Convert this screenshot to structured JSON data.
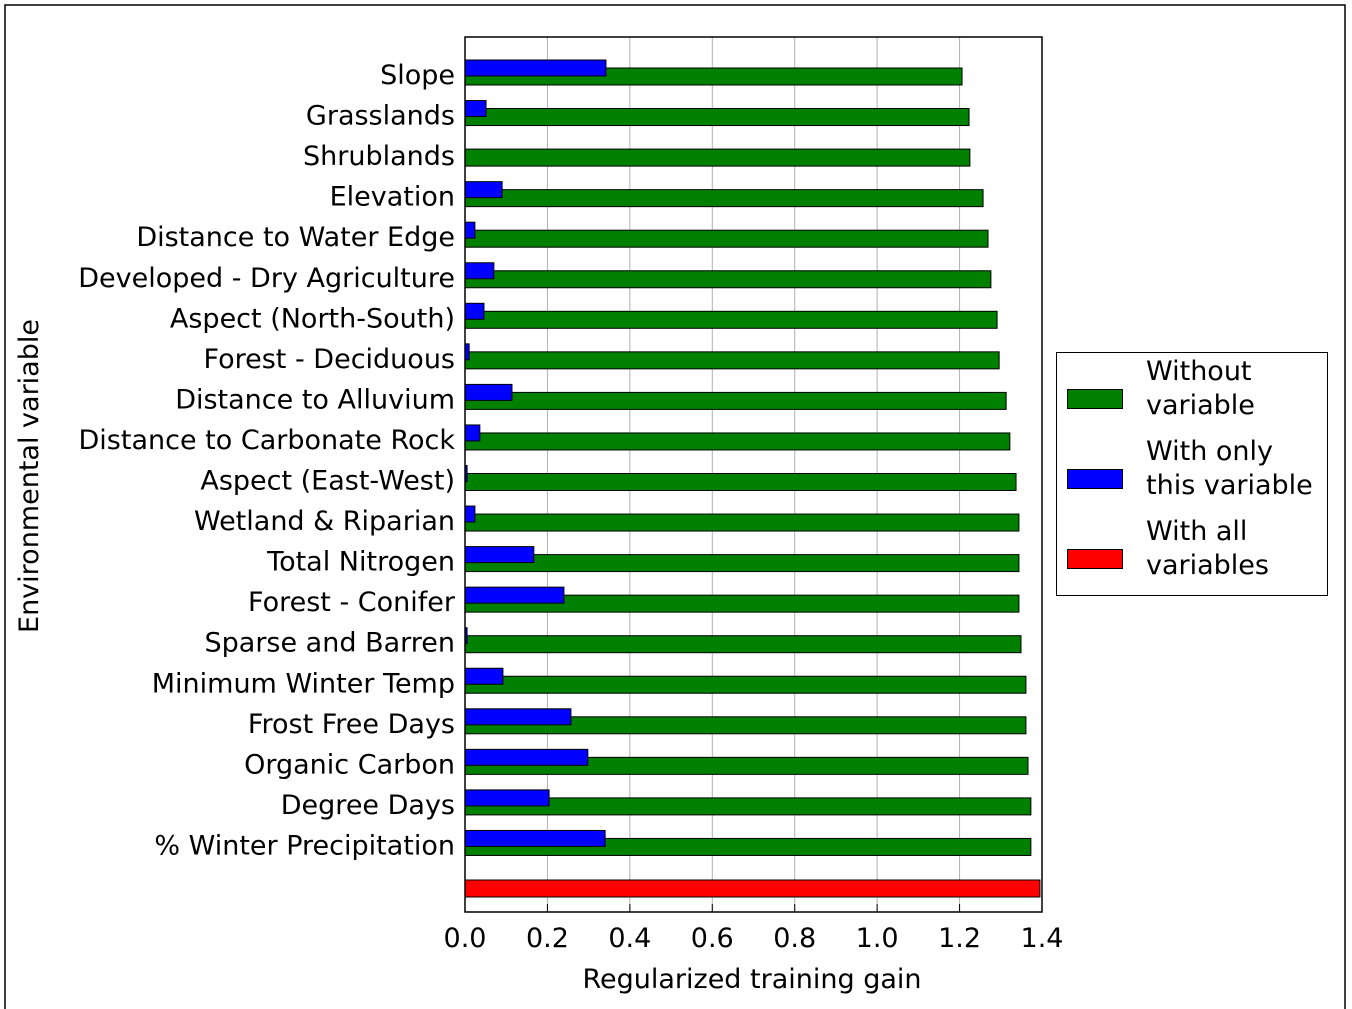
{
  "chart_data": {
    "type": "bar",
    "orientation": "horizontal",
    "x_label": "Regularized training gain",
    "y_label": "Environmental variable",
    "categories": [
      "Slope",
      "Grasslands",
      "Shrublands",
      "Elevation",
      "Distance to Water Edge",
      "Developed - Dry Agriculture",
      "Aspect (North-South)",
      "Forest - Deciduous",
      "Distance to Alluvium",
      "Distance to Carbonate Rock",
      "Aspect (East-West)",
      "Wetland & Riparian",
      "Total Nitrogen",
      "Forest - Conifer",
      "Sparse and Barren",
      "Minimum Winter Temp",
      "Frost Free Days",
      "Organic Carbon",
      "Degree Days",
      "% Winter Precipitation",
      null
    ],
    "series": [
      {
        "name": "Without variable",
        "color": "#008000",
        "values": [
          1.206,
          1.223,
          1.225,
          1.257,
          1.269,
          1.276,
          1.291,
          1.296,
          1.313,
          1.322,
          1.337,
          1.344,
          1.344,
          1.344,
          1.349,
          1.361,
          1.361,
          1.366,
          1.373,
          1.373,
          null
        ]
      },
      {
        "name": "With only this variable",
        "color": "#0000ff",
        "values": [
          0.342,
          0.051,
          0,
          0.09,
          0.024,
          0.07,
          0.046,
          0.01,
          0.114,
          0.036,
          0.005,
          0.024,
          0.167,
          0.24,
          0.005,
          0.092,
          0.257,
          0.298,
          0.204,
          0.34,
          null
        ]
      },
      {
        "name": "With all variables",
        "color": "#ff0000",
        "values": [
          null,
          null,
          null,
          null,
          null,
          null,
          null,
          null,
          null,
          null,
          null,
          null,
          null,
          null,
          null,
          null,
          null,
          null,
          null,
          null,
          1.395
        ]
      }
    ],
    "xlim": [
      0,
      1.4
    ],
    "xticks": [
      {
        "value": 0,
        "label": "0.0"
      },
      0.2,
      0.4,
      0.6,
      0.8,
      {
        "value": 1,
        "label": "1.0"
      },
      1.2,
      1.4
    ],
    "grid": true,
    "legend_position": "right"
  }
}
